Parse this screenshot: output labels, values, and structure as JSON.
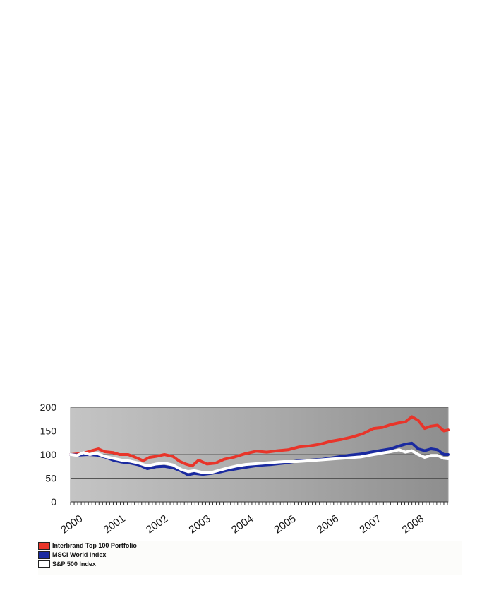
{
  "chart_data": {
    "type": "line",
    "title": "",
    "xlabel": "",
    "ylabel": "",
    "ylim": [
      0,
      200
    ],
    "xlim": [
      2000.0,
      2008.85
    ],
    "yticks": [
      0,
      50,
      100,
      150,
      200
    ],
    "xticks": [
      "2000",
      "2001",
      "2002",
      "2003",
      "2004",
      "2005",
      "2006",
      "2007",
      "2008"
    ],
    "grid": true,
    "legend_position": "bottom-left",
    "series": [
      {
        "name": "Interbrand Top 100 Portfolio",
        "color": "#e8352a",
        "x": [
          2000.0,
          2000.2,
          2000.35,
          2000.5,
          2000.65,
          2000.8,
          2001.0,
          2001.15,
          2001.35,
          2001.5,
          2001.7,
          2001.85,
          2002.0,
          2002.2,
          2002.4,
          2002.55,
          2002.7,
          2002.85,
          2003.0,
          2003.2,
          2003.4,
          2003.6,
          2003.85,
          2004.1,
          2004.35,
          2004.6,
          2004.85,
          2005.1,
          2005.35,
          2005.6,
          2005.85,
          2006.1,
          2006.35,
          2006.6,
          2006.85,
          2007.1,
          2007.3,
          2007.5,
          2007.7,
          2007.85,
          2008.0,
          2008.15,
          2008.3,
          2008.45,
          2008.6,
          2008.75,
          2008.85
        ],
        "y": [
          100,
          102,
          104,
          108,
          112,
          106,
          104,
          100,
          100,
          95,
          87,
          94,
          96,
          100,
          96,
          86,
          80,
          76,
          88,
          80,
          82,
          90,
          95,
          102,
          107,
          105,
          108,
          110,
          116,
          118,
          122,
          128,
          132,
          137,
          144,
          155,
          157,
          163,
          167,
          169,
          180,
          172,
          155,
          160,
          162,
          150,
          152
        ]
      },
      {
        "name": "MSCI World Index",
        "color": "#1a2aa0",
        "x": [
          2000.0,
          2000.2,
          2000.4,
          2000.6,
          2000.8,
          2001.0,
          2001.2,
          2001.4,
          2001.6,
          2001.8,
          2002.0,
          2002.2,
          2002.4,
          2002.6,
          2002.75,
          2002.9,
          2003.1,
          2003.3,
          2003.5,
          2003.7,
          2003.9,
          2004.1,
          2004.4,
          2004.7,
          2005.0,
          2005.3,
          2005.6,
          2005.9,
          2006.2,
          2006.5,
          2006.8,
          2007.1,
          2007.3,
          2007.5,
          2007.7,
          2007.85,
          2008.0,
          2008.15,
          2008.3,
          2008.45,
          2008.6,
          2008.75,
          2008.85
        ],
        "y": [
          100,
          99,
          100,
          99,
          95,
          88,
          84,
          82,
          78,
          70,
          74,
          75,
          72,
          65,
          57,
          60,
          58,
          60,
          63,
          67,
          70,
          73,
          77,
          79,
          82,
          86,
          88,
          90,
          94,
          98,
          101,
          106,
          109,
          112,
          118,
          122,
          124,
          112,
          108,
          112,
          110,
          100,
          100
        ]
      },
      {
        "name": "S&P 500 Index",
        "color": "#ffffff",
        "x": [
          2000.0,
          2000.15,
          2000.3,
          2000.45,
          2000.6,
          2000.8,
          2001.0,
          2001.2,
          2001.4,
          2001.6,
          2001.8,
          2002.0,
          2002.2,
          2002.4,
          2002.6,
          2002.75,
          2002.9,
          2003.1,
          2003.3,
          2003.5,
          2003.7,
          2003.9,
          2004.1,
          2004.4,
          2004.7,
          2005.0,
          2005.3,
          2005.6,
          2005.9,
          2006.2,
          2006.5,
          2006.8,
          2007.1,
          2007.3,
          2007.5,
          2007.7,
          2007.85,
          2008.0,
          2008.15,
          2008.3,
          2008.45,
          2008.6,
          2008.75,
          2008.85
        ],
        "y": [
          100,
          98,
          104,
          100,
          103,
          96,
          92,
          88,
          86,
          82,
          76,
          80,
          82,
          78,
          68,
          64,
          66,
          62,
          62,
          67,
          72,
          76,
          79,
          81,
          83,
          85,
          85,
          87,
          89,
          91,
          93,
          95,
          100,
          103,
          106,
          110,
          105,
          108,
          100,
          94,
          98,
          98,
          92,
          91
        ]
      }
    ]
  }
}
